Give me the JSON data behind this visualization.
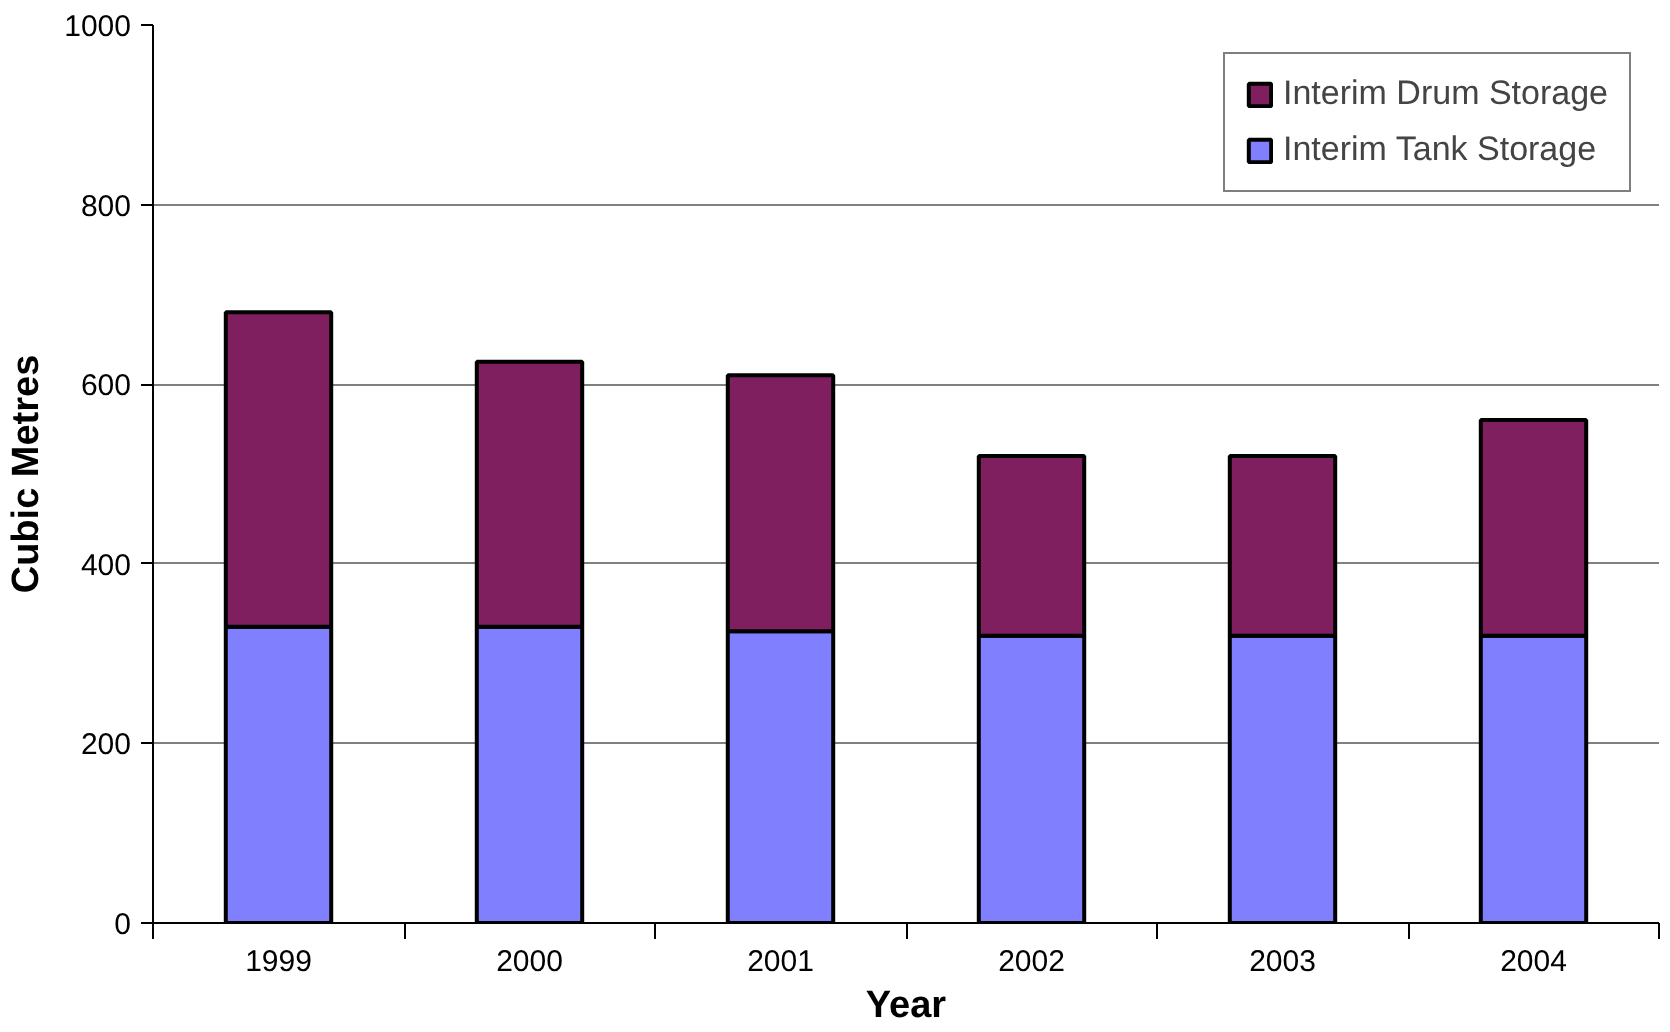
{
  "chart_data": {
    "type": "bar",
    "stacked": true,
    "xlabel": "Year",
    "ylabel": "Cubic Metres",
    "categories": [
      "1999",
      "2000",
      "2001",
      "2002",
      "2003",
      "2004"
    ],
    "series": [
      {
        "name": "Interim Tank Storage",
        "color": "#8080ff",
        "values": [
          330,
          330,
          325,
          320,
          320,
          320
        ]
      },
      {
        "name": "Interim Drum Storage",
        "color": "#7f1f5f",
        "values": [
          350,
          295,
          285,
          200,
          200,
          240
        ]
      }
    ],
    "ylim": [
      0,
      1000
    ],
    "yticks": [
      0,
      200,
      400,
      600,
      800,
      1000
    ],
    "grid": "y",
    "legend": "top right"
  }
}
